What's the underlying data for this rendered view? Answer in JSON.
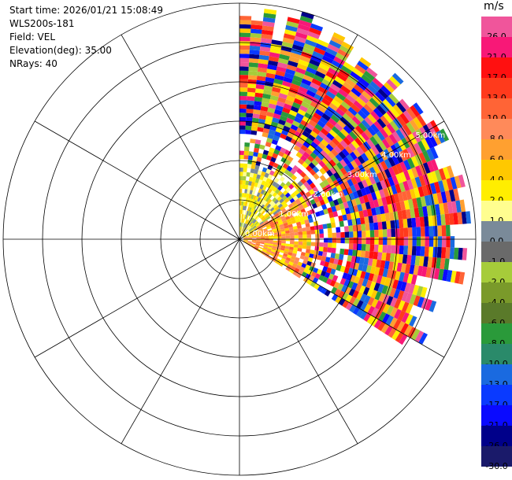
{
  "header": {
    "start_time": "Start time: 2026/01/21 15:08:49",
    "instrument": "WLS200s-181",
    "field": "Field: VEL",
    "elevation": "Elevation(deg): 35.00",
    "nrays": "NRays: 40"
  },
  "colorbar": {
    "unit": "m/s",
    "entries": [
      {
        "label": "26.0",
        "color": "#f0559b"
      },
      {
        "label": "21.0",
        "color": "#f81877"
      },
      {
        "label": "17.0",
        "color": "#ff1010"
      },
      {
        "label": "13.0",
        "color": "#ff3a1c"
      },
      {
        "label": "10.0",
        "color": "#ff6436"
      },
      {
        "label": "8.0",
        "color": "#ff8a5a"
      },
      {
        "label": "6.0",
        "color": "#ffa030"
      },
      {
        "label": "4.0",
        "color": "#ffc800"
      },
      {
        "label": "2.0",
        "color": "#ffee00"
      },
      {
        "label": "1.0",
        "color": "#fffe90"
      },
      {
        "label": "0.0",
        "color": "#7a8a99"
      },
      {
        "label": "-1.0",
        "color": "#6a6a6a"
      },
      {
        "label": "-2.0",
        "color": "#a6cc3a"
      },
      {
        "label": "-4.0",
        "color": "#7a9a2a"
      },
      {
        "label": "-6.0",
        "color": "#5a7a2a"
      },
      {
        "label": "-8.0",
        "color": "#2a9a3a"
      },
      {
        "label": "-10.0",
        "color": "#2a8a6a"
      },
      {
        "label": "-13.0",
        "color": "#1a6ae0"
      },
      {
        "label": "-17.0",
        "color": "#0a3aff"
      },
      {
        "label": "-21.0",
        "color": "#0a0aff"
      },
      {
        "label": "-26.0",
        "color": "#00008a"
      },
      {
        "label": "-30.0",
        "color": "#1a1a6a"
      }
    ]
  },
  "ppi": {
    "range_labels": [
      "0.00km",
      "1.00km",
      "2.00km",
      "3.00km",
      "4.00km",
      "5.00km"
    ],
    "ring_count": 6,
    "spoke_step_deg": 30,
    "sector_start_deg": 0,
    "sector_end_deg": 123,
    "nrays": 40,
    "gates": 56,
    "max_ring_km": 6,
    "sector_range_km": 6,
    "inner_zone_km": 1.5,
    "palette": {
      "outer": [
        "#f81877",
        "#f0559b",
        "#ff1010",
        "#ff6436",
        "#ffa030",
        "#ffee00",
        "#0a0aff",
        "#0a3aff",
        "#00008a",
        "#2a9a3a",
        "#a6cc3a",
        "#ffc800",
        "#1a6ae0",
        "#ff3a1c"
      ],
      "inner_north": [
        "#ffee00",
        "#ffc800",
        "#fffe90",
        "#7a8a99",
        "#a6cc3a",
        "#ffee00"
      ],
      "inner_east": [
        "#ff8a5a",
        "#ffa030",
        "#ff8a5a",
        "#ffc800",
        "#ff6436",
        "#ffee00"
      ]
    }
  }
}
